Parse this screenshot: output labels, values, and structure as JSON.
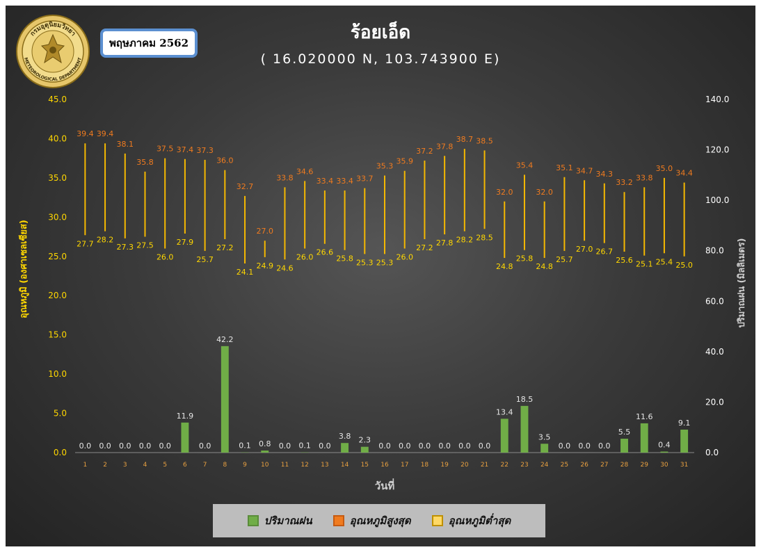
{
  "header": {
    "title": "ร้อยเอ็ด",
    "coordinates": "( 16.020000 N, 103.743900 E)",
    "month_label": "พฤษภาคม 2562",
    "logo": {
      "icon": "thai-meteorological-department-seal",
      "top_text": "กรมอุตุนิยมวิทยา",
      "bottom_text": "METEOROLOGICAL DEPARTMENT"
    }
  },
  "legend": {
    "items": [
      {
        "label": "ปริมาณฝน",
        "color": "#70ad47",
        "border": "#5a8c3a"
      },
      {
        "label": "อุณหภูมิสูงสุด",
        "color": "#f07b1f",
        "border": "#c55a11"
      },
      {
        "label": "อุณหภูมิต่ำสุด",
        "color": "#ffd966",
        "border": "#bf9000"
      }
    ]
  },
  "chart_data": {
    "type": "bar",
    "x": [
      1,
      2,
      3,
      4,
      5,
      6,
      7,
      8,
      9,
      10,
      11,
      12,
      13,
      14,
      15,
      16,
      17,
      18,
      19,
      20,
      21,
      22,
      23,
      24,
      25,
      26,
      27,
      28,
      29,
      30,
      31
    ],
    "xlabel": "วันที่",
    "ylabel_left": "อุณหภูมิ (องศาเซลเซียส)",
    "ylabel_right": "ปริมาณฝน (มิลลิเมตร)",
    "ylim_left": [
      0,
      45
    ],
    "ylim_right": [
      0,
      140
    ],
    "yticks_left": [
      "0.0",
      "5.0",
      "10.0",
      "15.0",
      "20.0",
      "25.0",
      "30.0",
      "35.0",
      "40.0",
      "45.0"
    ],
    "yticks_right": [
      "0.0",
      "20.0",
      "40.0",
      "60.0",
      "80.0",
      "100.0",
      "120.0",
      "140.0"
    ],
    "grid": false,
    "legend_position": "bottom",
    "colors": {
      "rain": "#70ad47",
      "max_label": "#f07b1f",
      "min_label": "#ffd700",
      "range_line": "#f5b800",
      "axis_left": "#ffd700",
      "axis_right": "#ffffff",
      "x_tick": "#e8a040"
    },
    "series": [
      {
        "name": "ปริมาณฝน",
        "axis": "right",
        "kind": "bar",
        "values": [
          0.0,
          0.0,
          0.0,
          0.0,
          0.0,
          11.9,
          0.0,
          42.2,
          0.1,
          0.8,
          0.0,
          0.1,
          0.0,
          3.8,
          2.3,
          0.0,
          0.0,
          0.0,
          0.0,
          0.0,
          0.0,
          13.4,
          18.5,
          3.5,
          0.0,
          0.0,
          0.0,
          5.5,
          11.6,
          0.4,
          9.1
        ]
      },
      {
        "name": "อุณหภูมิสูงสุด",
        "axis": "left",
        "kind": "range-high",
        "values": [
          39.4,
          39.4,
          38.1,
          35.8,
          37.5,
          37.4,
          37.3,
          36.0,
          32.7,
          27.0,
          33.8,
          34.6,
          33.4,
          33.4,
          33.7,
          35.3,
          35.9,
          37.2,
          37.8,
          38.7,
          38.5,
          32.0,
          35.4,
          32.0,
          35.1,
          34.7,
          34.3,
          33.2,
          33.8,
          35.0,
          34.4
        ]
      },
      {
        "name": "อุณหภูมิต่ำสุด",
        "axis": "left",
        "kind": "range-low",
        "values": [
          27.7,
          28.2,
          27.3,
          27.5,
          26.0,
          27.9,
          25.7,
          27.2,
          24.1,
          24.9,
          24.6,
          26.0,
          26.6,
          25.8,
          25.3,
          25.3,
          26.0,
          27.2,
          27.8,
          28.2,
          28.5,
          24.8,
          25.8,
          24.8,
          25.7,
          27.0,
          26.7,
          25.6,
          25.1,
          25.4,
          25.0
        ]
      }
    ]
  }
}
